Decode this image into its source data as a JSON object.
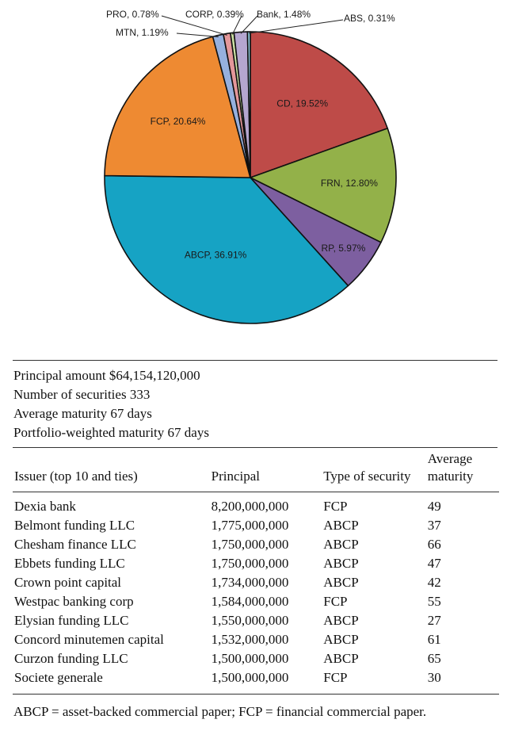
{
  "chart_data": {
    "type": "pie",
    "slices": [
      {
        "label": "CD",
        "value": 19.52,
        "display": "CD, 19.52%",
        "color": "#be4b48"
      },
      {
        "label": "FRN",
        "value": 12.8,
        "display": "FRN, 12.80%",
        "color": "#93b149"
      },
      {
        "label": "RP",
        "value": 5.97,
        "display": "RP, 5.97%",
        "color": "#7d5fa0"
      },
      {
        "label": "ABCP",
        "value": 36.91,
        "display": "ABCP, 36.91%",
        "color": "#16a3c4"
      },
      {
        "label": "FCP",
        "value": 20.64,
        "display": "FCP, 20.64%",
        "color": "#ee8a32"
      },
      {
        "label": "MTN",
        "value": 1.19,
        "display": "MTN, 1.19%",
        "color": "#96b0de"
      },
      {
        "label": "PRO",
        "value": 0.78,
        "display": "PRO, 0.78%",
        "color": "#e4979a"
      },
      {
        "label": "CORP",
        "value": 0.39,
        "display": "CORP, 0.39%",
        "color": "#cbe1a3"
      },
      {
        "label": "Bank",
        "value": 1.48,
        "display": "Bank, 1.48%",
        "color": "#b5a6cf"
      },
      {
        "label": "ABS",
        "value": 0.31,
        "display": "ABS, 0.31%",
        "color": "#94d2e4"
      }
    ],
    "start_angle_deg": 0,
    "direction": "clockwise",
    "border_color": "#111111"
  },
  "summary": {
    "principal": "Principal amount $64,154,120,000",
    "count": "Number of securities 333",
    "avg_maturity": "Average maturity 67 days",
    "weighted_maturity": "Portfolio-weighted maturity 67 days"
  },
  "table": {
    "headers": {
      "issuer": "Issuer (top 10 and ties)",
      "principal": "Principal",
      "type": "Type of security",
      "maturity_line1": "Average",
      "maturity_line2": "maturity"
    },
    "rows": [
      {
        "issuer": "Dexia bank",
        "principal": "8,200,000,000",
        "type": "FCP",
        "maturity": "49"
      },
      {
        "issuer": "Belmont funding LLC",
        "principal": "1,775,000,000",
        "type": "ABCP",
        "maturity": "37"
      },
      {
        "issuer": "Chesham finance LLC",
        "principal": "1,750,000,000",
        "type": "ABCP",
        "maturity": "66"
      },
      {
        "issuer": "Ebbets funding LLC",
        "principal": "1,750,000,000",
        "type": "ABCP",
        "maturity": "47"
      },
      {
        "issuer": "Crown point capital",
        "principal": "1,734,000,000",
        "type": "ABCP",
        "maturity": "42"
      },
      {
        "issuer": "Westpac banking corp",
        "principal": "1,584,000,000",
        "type": "FCP",
        "maturity": "55"
      },
      {
        "issuer": "Elysian funding LLC",
        "principal": "1,550,000,000",
        "type": "ABCP",
        "maturity": "27"
      },
      {
        "issuer": "Concord minutemen capital",
        "principal": "1,532,000,000",
        "type": "ABCP",
        "maturity": "61"
      },
      {
        "issuer": "Curzon funding LLC",
        "principal": "1,500,000,000",
        "type": "ABCP",
        "maturity": "65"
      },
      {
        "issuer": "Societe generale",
        "principal": "1,500,000,000",
        "type": "FCP",
        "maturity": "30"
      }
    ]
  },
  "footnote": "ABCP = asset-backed commercial paper; FCP = financial commercial paper."
}
